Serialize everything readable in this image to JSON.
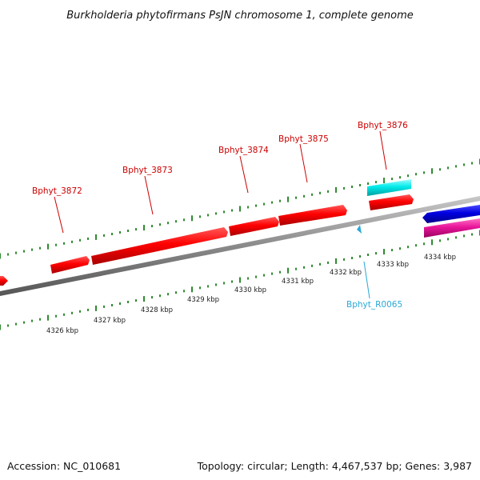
{
  "title": "Burkholderia phytofirmans PsJN chromosome 1, complete genome",
  "footer": {
    "accession": "Accession: NC_010681",
    "topology": "Topology: circular; Length: 4,467,537 bp; Genes: 3,987"
  },
  "colors": {
    "forward_cds": "#ff0000",
    "reverse_cds": "#0000dd",
    "rrna": "#00e5e5",
    "other_feature": "#e6189c",
    "label_text": "#cc0000",
    "rna_label_text": "#2aa8d8",
    "axis": "#808080",
    "ticks": "#2e8b2e"
  },
  "kbp_labels": [
    "4326 kbp",
    "4327 kbp",
    "4328 kbp",
    "4329 kbp",
    "4330 kbp",
    "4331 kbp",
    "4332 kbp",
    "4333 kbp",
    "4334 kbp"
  ],
  "genes": [
    {
      "label": "Bphyt_3872",
      "strand": "forward",
      "type": "CDS"
    },
    {
      "label": "Bphyt_3873",
      "strand": "forward",
      "type": "CDS"
    },
    {
      "label": "Bphyt_3874",
      "strand": "forward",
      "type": "CDS"
    },
    {
      "label": "Bphyt_3875",
      "strand": "forward",
      "type": "CDS"
    },
    {
      "label": "Bphyt_3876",
      "strand": "forward",
      "type": "CDS"
    },
    {
      "label": "Bphyt_R0065",
      "strand": "reverse",
      "type": "tRNA"
    }
  ]
}
